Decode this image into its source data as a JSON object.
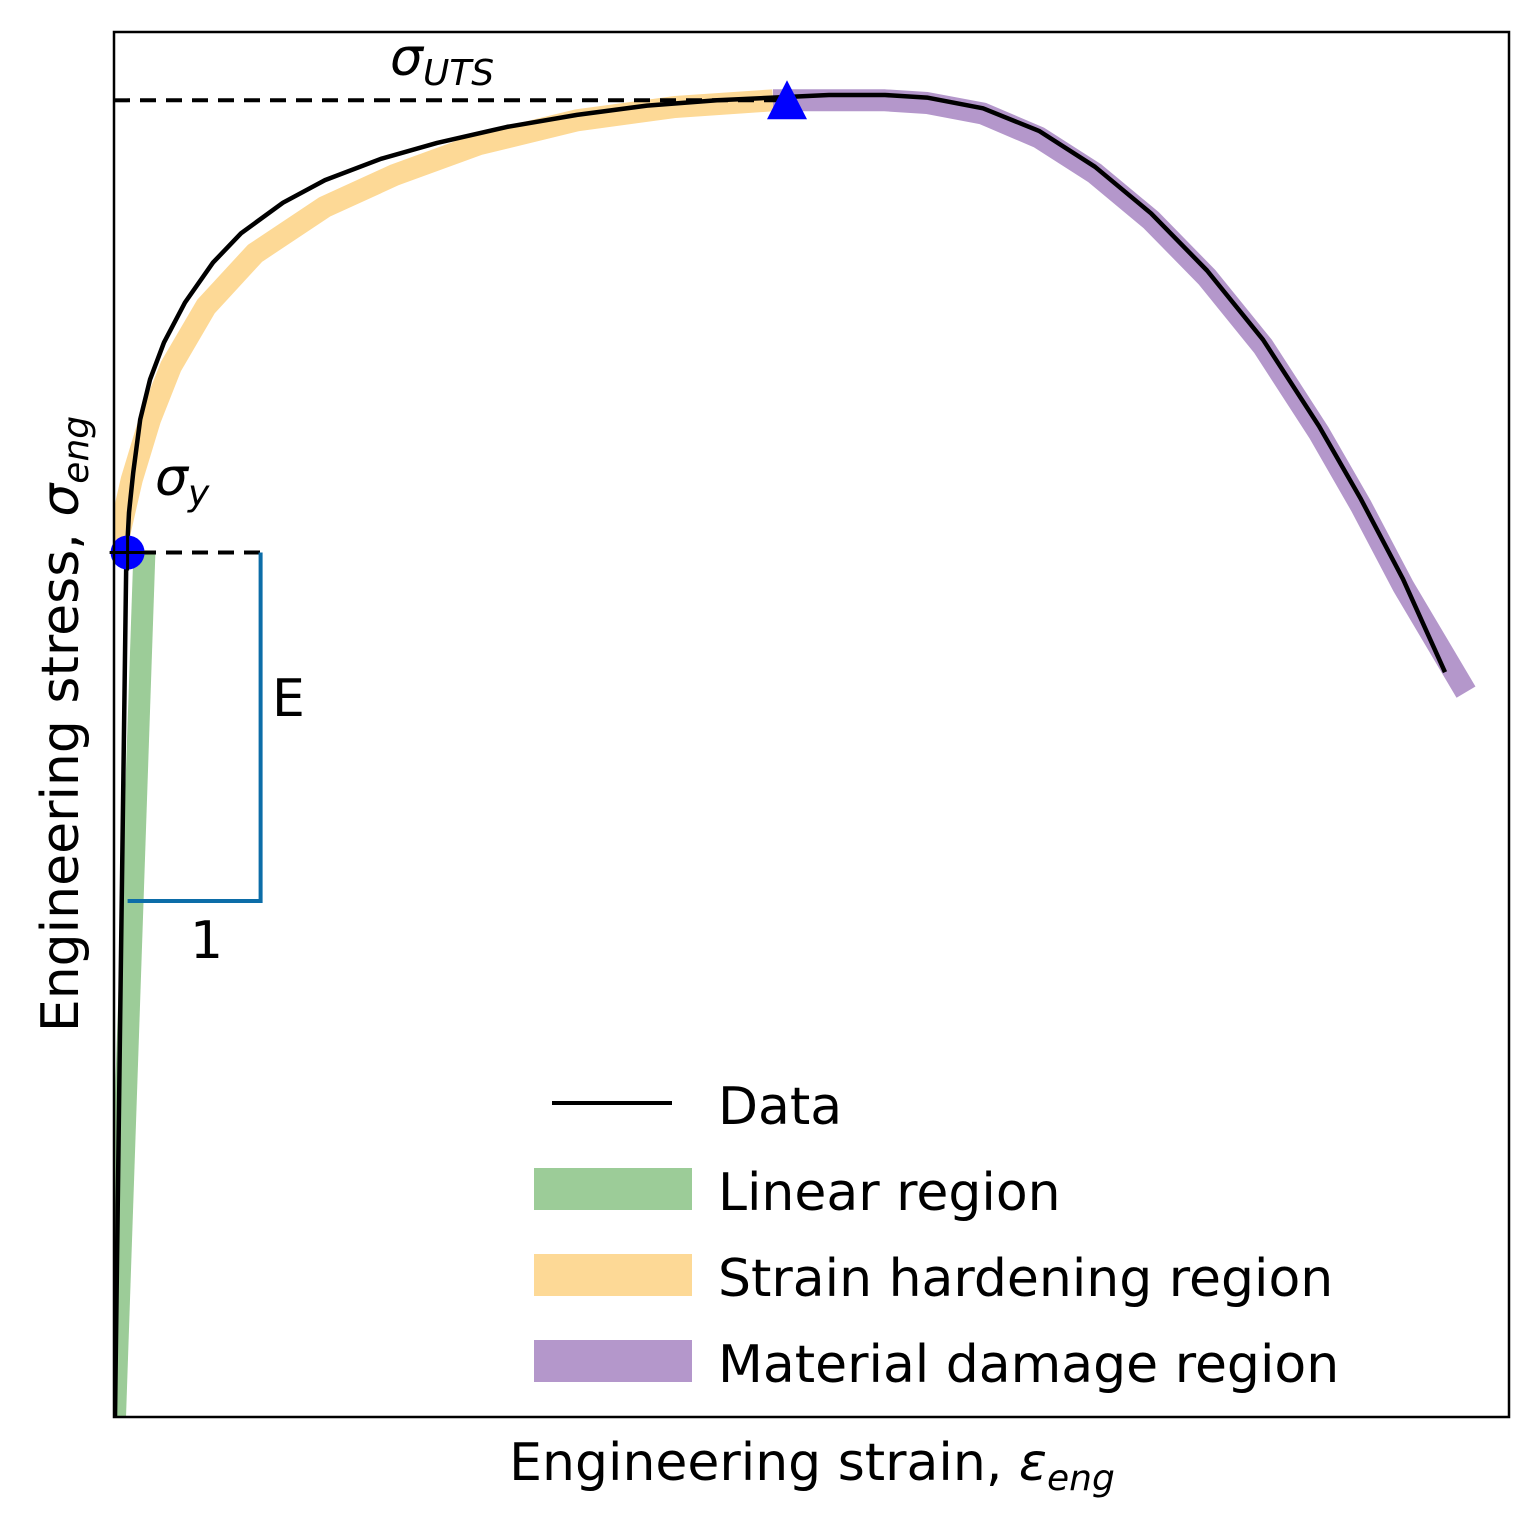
{
  "chart_data": {
    "type": "line",
    "title": "",
    "xlabel": "Engineering strain, ",
    "xlabel_symbol": "ε",
    "xlabel_subscript": "eng",
    "ylabel": "Engineering stress, ",
    "ylabel_symbol": "σ",
    "ylabel_subscript": "eng",
    "xlim": [
      0,
      1
    ],
    "ylim": [
      0,
      1
    ],
    "axis_ticks": "none",
    "grid": false,
    "legend_placement": "lower-right",
    "series": [
      {
        "name": "Data",
        "color": "#000000",
        "x": [
          0.0,
          0.004,
          0.008,
          0.01,
          0.013,
          0.018,
          0.025,
          0.035,
          0.05,
          0.07,
          0.09,
          0.12,
          0.15,
          0.19,
          0.23,
          0.28,
          0.33,
          0.38,
          0.43,
          0.47,
          0.51,
          0.55,
          0.58,
          0.62,
          0.66,
          0.7,
          0.74,
          0.78,
          0.82,
          0.86,
          0.89,
          0.92,
          0.95
        ],
        "y": [
          0.0,
          0.325,
          0.64,
          0.68,
          0.71,
          0.75,
          0.78,
          0.808,
          0.838,
          0.868,
          0.89,
          0.913,
          0.93,
          0.946,
          0.958,
          0.97,
          0.979,
          0.986,
          0.99,
          0.992,
          0.994,
          0.994,
          0.992,
          0.984,
          0.967,
          0.94,
          0.905,
          0.862,
          0.81,
          0.745,
          0.69,
          0.63,
          0.56
        ]
      }
    ],
    "regions": [
      {
        "name": "Linear region",
        "color": "#9ccc98",
        "x": [
          0.0,
          0.021
        ],
        "y": [
          0.0,
          0.65
        ]
      },
      {
        "name": "Strain hardening region",
        "color": "#fdd996",
        "x": [
          0.0,
          0.012,
          0.025,
          0.04,
          0.065,
          0.1,
          0.15,
          0.2,
          0.26,
          0.33,
          0.4,
          0.47
        ],
        "y": [
          0.65,
          0.705,
          0.75,
          0.79,
          0.835,
          0.875,
          0.91,
          0.934,
          0.957,
          0.975,
          0.985,
          0.99
        ]
      },
      {
        "name": "Material damage region",
        "color": "#b497cb",
        "x": [
          0.47,
          0.51,
          0.55,
          0.58,
          0.62,
          0.66,
          0.7,
          0.74,
          0.78,
          0.82,
          0.86,
          0.89,
          0.92,
          0.965
        ],
        "y": [
          0.99,
          0.99,
          0.99,
          0.988,
          0.98,
          0.962,
          0.935,
          0.9,
          0.857,
          0.805,
          0.74,
          0.685,
          0.625,
          0.545
        ]
      }
    ],
    "markers": [
      {
        "label_symbol": "σ",
        "label_subscript": "y",
        "shape": "circle",
        "color": "#0000ff",
        "x": 0.009,
        "y": 0.65
      },
      {
        "label_symbol": "σ",
        "label_subscript": "UTS",
        "shape": "triangle",
        "color": "#0000ff",
        "x": 0.48,
        "y": 0.99
      }
    ],
    "modulus_triangle": {
      "color": "#0c6da8",
      "x": [
        0.009,
        0.104
      ],
      "y": [
        0.388,
        0.65
      ],
      "rise_label": "E",
      "run_label": "1"
    },
    "legend": [
      {
        "label": "Data",
        "style": "line",
        "color": "#000000"
      },
      {
        "label": "Linear region",
        "style": "band",
        "color": "#9ccc98"
      },
      {
        "label": "Strain hardening region",
        "style": "band",
        "color": "#fdd996"
      },
      {
        "label": "Material damage region",
        "style": "band",
        "color": "#b497cb"
      }
    ]
  }
}
